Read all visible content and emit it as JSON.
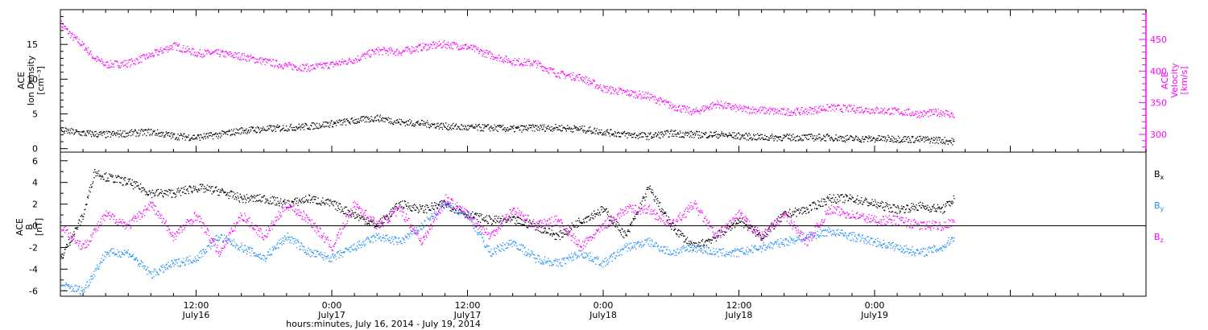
{
  "chart_data": [
    {
      "type": "scatter",
      "panel": "top",
      "left_axis": {
        "label_lines": [
          "ACE",
          "Ion Density",
          "[cm⁻³]"
        ],
        "ylim": [
          -0.5,
          20
        ],
        "ticks": [
          0,
          5,
          10,
          15
        ]
      },
      "right_axis": {
        "label_lines": [
          "ACE",
          "Velocity",
          "[km/s]"
        ],
        "ylim": [
          272,
          497
        ],
        "ticks": [
          300,
          350,
          400,
          450
        ],
        "color": "#ff00ff"
      },
      "series": [
        {
          "axis": "right",
          "color": "#ff00ff",
          "x": [
            0,
            1,
            2,
            3,
            4,
            6,
            8,
            10,
            12,
            14,
            16,
            18,
            20,
            22,
            24,
            26,
            28,
            30,
            32,
            34,
            36,
            38,
            40,
            42,
            44,
            46,
            48,
            50,
            52,
            54,
            56,
            58,
            60,
            62,
            64,
            66,
            68,
            70,
            72,
            74,
            76,
            78,
            79
          ],
          "y": [
            475,
            455,
            440,
            420,
            410,
            412,
            425,
            440,
            428,
            428,
            423,
            415,
            408,
            405,
            410,
            418,
            432,
            430,
            438,
            442,
            438,
            425,
            415,
            412,
            395,
            390,
            372,
            366,
            360,
            345,
            335,
            348,
            340,
            338,
            335,
            337,
            342,
            340,
            338,
            336,
            332,
            335,
            330
          ]
        },
        {
          "axis": "left",
          "color": "#000000",
          "x": [
            0,
            2,
            4,
            6,
            8,
            10,
            12,
            14,
            16,
            18,
            20,
            22,
            24,
            26,
            28,
            30,
            32,
            34,
            36,
            38,
            40,
            42,
            44,
            46,
            48,
            50,
            52,
            54,
            56,
            58,
            60,
            62,
            64,
            66,
            68,
            70,
            72,
            74,
            76,
            78,
            79
          ],
          "y": [
            2.6,
            2.2,
            2.0,
            2.2,
            2.4,
            1.8,
            1.6,
            2.0,
            2.6,
            2.8,
            3.0,
            3.2,
            3.6,
            4.0,
            4.4,
            3.8,
            3.6,
            3.2,
            3.0,
            3.0,
            2.8,
            3.0,
            3.0,
            2.8,
            2.4,
            2.0,
            1.8,
            2.2,
            2.0,
            2.0,
            1.8,
            1.6,
            1.6,
            1.6,
            1.6,
            1.4,
            1.4,
            1.4,
            1.3,
            1.2,
            1.0
          ]
        }
      ]
    },
    {
      "type": "scatter",
      "panel": "bottom",
      "left_axis": {
        "label_lines": [
          "ACE",
          "B",
          "[nT]"
        ],
        "ylim": [
          -6.5,
          6.8
        ],
        "ticks": [
          -6,
          -4,
          -2,
          0,
          2,
          4,
          6
        ]
      },
      "zero_line": 0,
      "series": [
        {
          "name": "Bx",
          "color": "#000000",
          "x": [
            0,
            2,
            3,
            4,
            6,
            8,
            10,
            12,
            14,
            16,
            18,
            20,
            22,
            24,
            26,
            28,
            30,
            32,
            34,
            36,
            38,
            40,
            42,
            44,
            46,
            48,
            50,
            52,
            54,
            56,
            58,
            60,
            62,
            64,
            66,
            68,
            70,
            72,
            74,
            76,
            78,
            79
          ],
          "y": [
            -3.0,
            1.0,
            5.0,
            4.5,
            4.0,
            3.0,
            3.0,
            3.5,
            3.2,
            2.5,
            2.5,
            2.0,
            2.5,
            2.0,
            1.0,
            0.0,
            2.0,
            1.5,
            2.0,
            1.0,
            0.5,
            0.5,
            0.0,
            -1.0,
            0.5,
            1.5,
            -1.0,
            3.5,
            0.0,
            -2.0,
            -1.0,
            0.5,
            -1.0,
            1.0,
            1.5,
            2.5,
            2.5,
            2.0,
            1.5,
            1.8,
            1.5,
            2.5
          ]
        },
        {
          "name": "By",
          "color": "#1e90ff",
          "x": [
            0,
            2,
            4,
            6,
            8,
            10,
            12,
            14,
            16,
            18,
            20,
            22,
            24,
            26,
            28,
            30,
            32,
            34,
            36,
            38,
            40,
            42,
            44,
            46,
            48,
            50,
            52,
            54,
            56,
            58,
            60,
            62,
            64,
            66,
            68,
            70,
            72,
            74,
            76,
            78,
            79
          ],
          "y": [
            -5.5,
            -6.0,
            -2.5,
            -2.5,
            -4.5,
            -3.5,
            -3.0,
            -1.0,
            -2.0,
            -3.0,
            -1.0,
            -2.5,
            -3.0,
            -2.0,
            -1.0,
            -1.5,
            0.0,
            2.0,
            1.0,
            -2.5,
            -1.5,
            -3.0,
            -3.5,
            -2.5,
            -3.5,
            -2.0,
            -1.5,
            -2.5,
            -2.0,
            -2.5,
            -2.5,
            -2.0,
            -1.5,
            -1.0,
            -0.5,
            -1.0,
            -1.5,
            -2.0,
            -2.5,
            -2.0,
            -1.0
          ]
        },
        {
          "name": "Bz",
          "color": "#ff00ff",
          "x": [
            0,
            2,
            4,
            6,
            8,
            10,
            12,
            14,
            16,
            18,
            20,
            22,
            24,
            26,
            28,
            30,
            32,
            34,
            36,
            38,
            40,
            42,
            44,
            46,
            48,
            50,
            52,
            54,
            56,
            58,
            60,
            62,
            64,
            66,
            68,
            70,
            72,
            74,
            76,
            78,
            79
          ],
          "y": [
            0.0,
            -2.0,
            1.0,
            0.0,
            2.0,
            -1.0,
            1.0,
            -2.5,
            1.0,
            -1.0,
            2.0,
            0.5,
            -2.0,
            2.0,
            0.0,
            1.5,
            -1.5,
            2.5,
            1.0,
            -1.0,
            1.5,
            0.0,
            0.5,
            -2.0,
            0.0,
            1.5,
            1.5,
            0.0,
            2.0,
            -1.0,
            1.0,
            -1.0,
            1.0,
            -1.5,
            1.5,
            1.0,
            0.5,
            0.5,
            0.0,
            0.0,
            0.5
          ]
        }
      ],
      "legend": [
        {
          "label": "B",
          "sub": "x",
          "color": "#000000"
        },
        {
          "label": "B",
          "sub": "y",
          "color": "#1e90ff"
        },
        {
          "label": "B",
          "sub": "z",
          "color": "#ff00ff"
        }
      ]
    }
  ],
  "x_axis": {
    "range_hours": [
      0,
      96
    ],
    "ticks": [
      {
        "hour": 12,
        "time": "12:00",
        "date": "July16"
      },
      {
        "hour": 24,
        "time": "0:00",
        "date": "July17"
      },
      {
        "hour": 36,
        "time": "12:00",
        "date": "July17"
      },
      {
        "hour": 48,
        "time": "0:00",
        "date": "July18"
      },
      {
        "hour": 60,
        "time": "12:00",
        "date": "July18"
      },
      {
        "hour": 72,
        "time": "0:00",
        "date": "July19"
      }
    ],
    "title": "hours:minutes, July 16, 2014 - July 19, 2014"
  }
}
